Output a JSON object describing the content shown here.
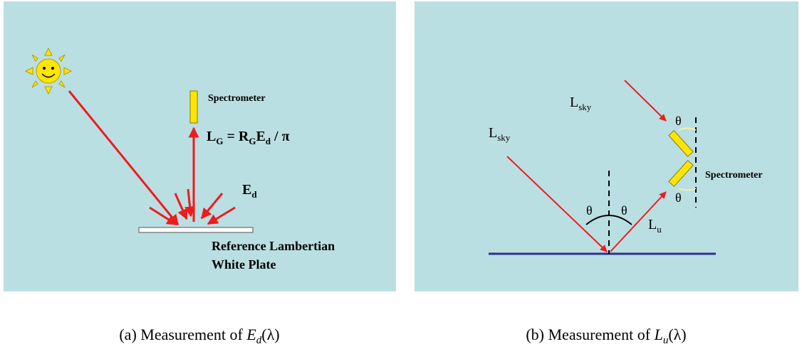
{
  "panel_a": {
    "spectrometer_label": "Spectrometer",
    "formula": {
      "l": "L",
      "l_sub": "G",
      "eq": " = R",
      "r_sub": "G",
      "e": "E",
      "e_sub": "d",
      "rest": " / π"
    },
    "irradiance": {
      "base": "E",
      "sub": "d"
    },
    "plate_label": [
      "Reference Lambertian",
      "White Plate"
    ],
    "caption": {
      "prefix": "(a) Measurement of ",
      "symbol": "E",
      "sub": "d",
      "arg": "(λ)"
    }
  },
  "panel_b": {
    "sky_labels": [
      {
        "base": "L",
        "sub": "sky"
      },
      {
        "base": "L",
        "sub": "sky"
      }
    ],
    "angle_labels": [
      "θ",
      "θ",
      "θ",
      "θ"
    ],
    "spectrometer_label": "Spectrometer",
    "upwelling": {
      "base": "L",
      "sub": "u"
    },
    "caption": {
      "prefix": "(b) Measurement of ",
      "symbol": "L",
      "sub": "u",
      "arg": "(λ)"
    }
  }
}
